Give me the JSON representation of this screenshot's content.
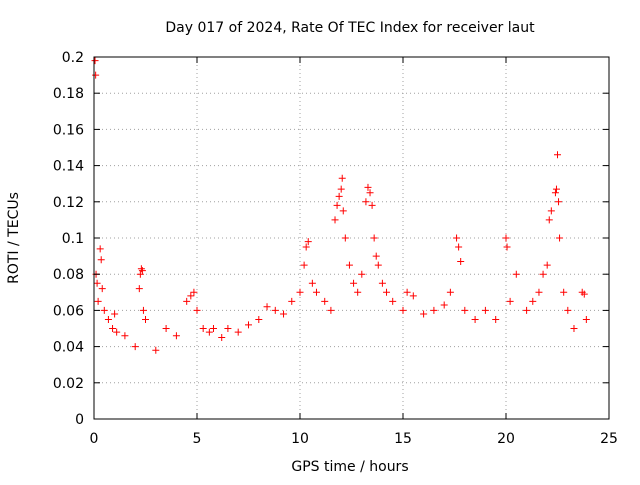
{
  "chart_data": {
    "type": "scatter",
    "title": "Day 017 of 2024, Rate Of TEC Index for receiver laut",
    "xlabel": "GPS time / hours",
    "ylabel": "ROTI / TECUs",
    "xlim": [
      0,
      25
    ],
    "ylim": [
      0,
      0.2
    ],
    "x_ticks": [
      {
        "value": 0,
        "label": "0"
      },
      {
        "value": 5,
        "label": "5"
      },
      {
        "value": 10,
        "label": "10"
      },
      {
        "value": 15,
        "label": "15"
      },
      {
        "value": 20,
        "label": "20"
      },
      {
        "value": 25,
        "label": "25"
      }
    ],
    "y_ticks": [
      {
        "value": 0,
        "label": "0"
      },
      {
        "value": 0.02,
        "label": "0.02"
      },
      {
        "value": 0.04,
        "label": "0.04"
      },
      {
        "value": 0.06,
        "label": "0.06"
      },
      {
        "value": 0.08,
        "label": "0.08"
      },
      {
        "value": 0.1,
        "label": "0.1"
      },
      {
        "value": 0.12,
        "label": "0.12"
      },
      {
        "value": 0.14,
        "label": "0.14"
      },
      {
        "value": 0.16,
        "label": "0.16"
      },
      {
        "value": 0.18,
        "label": "0.18"
      },
      {
        "value": 0.2,
        "label": "0.2"
      }
    ],
    "grid": true,
    "marker": "plus",
    "series": [
      {
        "name": "ROTI",
        "color": "#ff0000",
        "points": [
          [
            0.05,
            0.198
          ],
          [
            0.08,
            0.19
          ],
          [
            0.1,
            0.08
          ],
          [
            0.15,
            0.075
          ],
          [
            0.2,
            0.065
          ],
          [
            0.3,
            0.094
          ],
          [
            0.35,
            0.088
          ],
          [
            0.4,
            0.072
          ],
          [
            0.5,
            0.06
          ],
          [
            0.7,
            0.055
          ],
          [
            0.9,
            0.05
          ],
          [
            1.0,
            0.058
          ],
          [
            1.1,
            0.048
          ],
          [
            1.5,
            0.046
          ],
          [
            2.0,
            0.04
          ],
          [
            2.2,
            0.072
          ],
          [
            2.25,
            0.08
          ],
          [
            2.3,
            0.083
          ],
          [
            2.35,
            0.082
          ],
          [
            2.4,
            0.06
          ],
          [
            2.5,
            0.055
          ],
          [
            3.0,
            0.038
          ],
          [
            3.5,
            0.05
          ],
          [
            4.0,
            0.046
          ],
          [
            4.5,
            0.065
          ],
          [
            4.7,
            0.068
          ],
          [
            4.85,
            0.07
          ],
          [
            5.0,
            0.06
          ],
          [
            5.3,
            0.05
          ],
          [
            5.6,
            0.048
          ],
          [
            5.8,
            0.05
          ],
          [
            6.2,
            0.045
          ],
          [
            6.5,
            0.05
          ],
          [
            7.0,
            0.048
          ],
          [
            7.5,
            0.052
          ],
          [
            8.0,
            0.055
          ],
          [
            8.4,
            0.062
          ],
          [
            8.8,
            0.06
          ],
          [
            9.2,
            0.058
          ],
          [
            9.6,
            0.065
          ],
          [
            10.0,
            0.07
          ],
          [
            10.2,
            0.085
          ],
          [
            10.3,
            0.095
          ],
          [
            10.4,
            0.098
          ],
          [
            10.6,
            0.075
          ],
          [
            10.8,
            0.07
          ],
          [
            11.2,
            0.065
          ],
          [
            11.5,
            0.06
          ],
          [
            11.7,
            0.11
          ],
          [
            11.8,
            0.118
          ],
          [
            11.9,
            0.123
          ],
          [
            12.0,
            0.127
          ],
          [
            12.05,
            0.133
          ],
          [
            12.1,
            0.115
          ],
          [
            12.2,
            0.1
          ],
          [
            12.4,
            0.085
          ],
          [
            12.6,
            0.075
          ],
          [
            12.8,
            0.07
          ],
          [
            13.0,
            0.08
          ],
          [
            13.2,
            0.12
          ],
          [
            13.3,
            0.128
          ],
          [
            13.4,
            0.125
          ],
          [
            13.5,
            0.118
          ],
          [
            13.6,
            0.1
          ],
          [
            13.7,
            0.09
          ],
          [
            13.8,
            0.085
          ],
          [
            14.0,
            0.075
          ],
          [
            14.2,
            0.07
          ],
          [
            14.5,
            0.065
          ],
          [
            15.0,
            0.06
          ],
          [
            15.2,
            0.07
          ],
          [
            15.5,
            0.068
          ],
          [
            16.0,
            0.058
          ],
          [
            16.5,
            0.06
          ],
          [
            17.0,
            0.063
          ],
          [
            17.3,
            0.07
          ],
          [
            17.6,
            0.1
          ],
          [
            17.7,
            0.095
          ],
          [
            17.8,
            0.087
          ],
          [
            18.0,
            0.06
          ],
          [
            18.5,
            0.055
          ],
          [
            19.0,
            0.06
          ],
          [
            19.5,
            0.055
          ],
          [
            20.0,
            0.1
          ],
          [
            20.05,
            0.095
          ],
          [
            20.2,
            0.065
          ],
          [
            20.5,
            0.08
          ],
          [
            21.0,
            0.06
          ],
          [
            21.3,
            0.065
          ],
          [
            21.6,
            0.07
          ],
          [
            21.8,
            0.08
          ],
          [
            22.0,
            0.085
          ],
          [
            22.1,
            0.11
          ],
          [
            22.2,
            0.115
          ],
          [
            22.4,
            0.125
          ],
          [
            22.45,
            0.127
          ],
          [
            22.5,
            0.146
          ],
          [
            22.55,
            0.12
          ],
          [
            22.6,
            0.1
          ],
          [
            22.8,
            0.07
          ],
          [
            23.0,
            0.06
          ],
          [
            23.3,
            0.05
          ],
          [
            23.7,
            0.07
          ],
          [
            23.8,
            0.069
          ],
          [
            23.9,
            0.055
          ]
        ]
      }
    ]
  }
}
